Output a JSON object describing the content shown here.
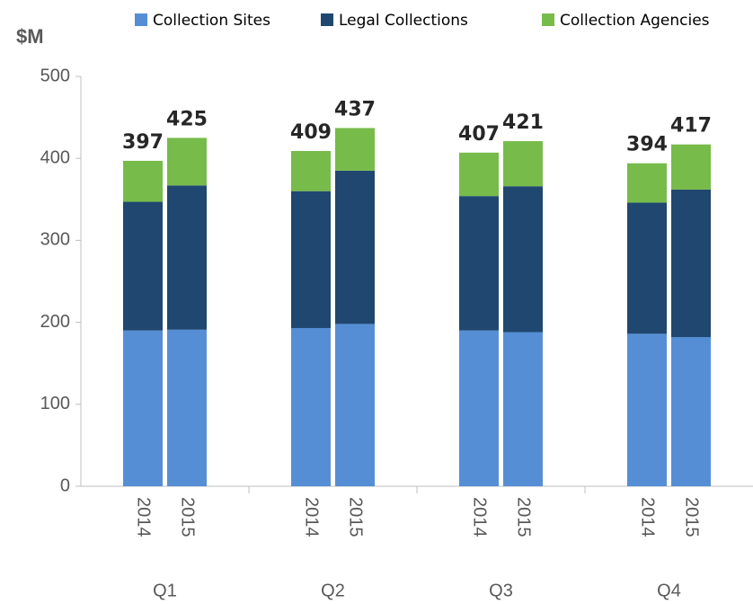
{
  "chart_data": {
    "type": "stacked_bar",
    "y_label": "$M",
    "groups": [
      "Q1",
      "Q2",
      "Q3",
      "Q4"
    ],
    "categories": [
      "2014",
      "2015",
      "2014",
      "2015",
      "2014",
      "2015",
      "2014",
      "2015"
    ],
    "series": [
      {
        "name": "Collection Sites",
        "color": "#558ed5",
        "values": [
          190,
          191,
          193,
          198,
          190,
          188,
          186,
          182
        ]
      },
      {
        "name": "Legal Collections",
        "color": "#1f4770",
        "values": [
          157,
          176,
          167,
          187,
          164,
          178,
          160,
          180
        ]
      },
      {
        "name": "Collection Agencies",
        "color": "#77bb4a",
        "values": [
          50,
          58,
          49,
          52,
          53,
          55,
          48,
          55
        ]
      }
    ],
    "totals": [
      397,
      425,
      409,
      437,
      407,
      421,
      394,
      417
    ],
    "ylim": [
      0,
      500
    ],
    "yticks": [
      0,
      100,
      200,
      300,
      400,
      500
    ],
    "legend": "top"
  }
}
